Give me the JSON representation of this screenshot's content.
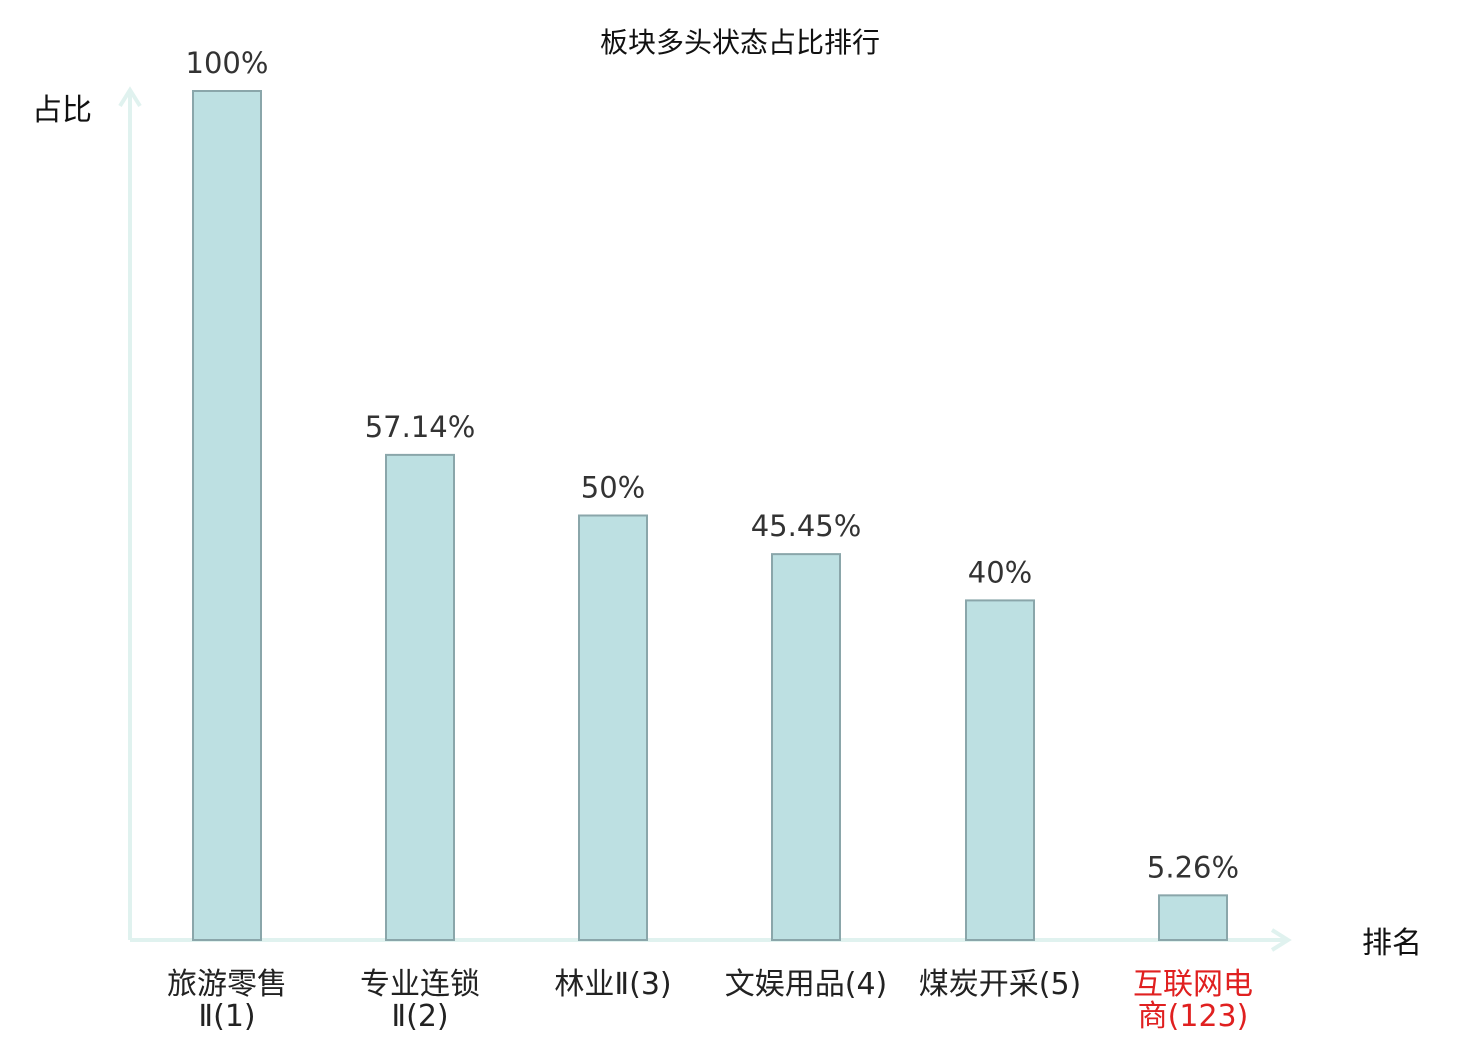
{
  "chart_data": {
    "type": "bar",
    "title": "板块多头状态占比排行",
    "ylabel": "占比",
    "xlabel": "排名",
    "categories": [
      {
        "line1": "旅游零售",
        "line2": "Ⅱ(1)",
        "highlight": false
      },
      {
        "line1": "专业连锁",
        "line2": "Ⅱ(2)",
        "highlight": false
      },
      {
        "line1": "林业Ⅱ(3)",
        "line2": "",
        "highlight": false
      },
      {
        "line1": "文娱用品(4)",
        "line2": "",
        "highlight": false
      },
      {
        "line1": "煤炭开采(5)",
        "line2": "",
        "highlight": false
      },
      {
        "line1": "互联网电",
        "line2": "商(123)",
        "highlight": true
      }
    ],
    "values": [
      100,
      57.14,
      50,
      45.45,
      40,
      5.26
    ],
    "value_labels": [
      "100%",
      "57.14%",
      "50%",
      "45.45%",
      "40%",
      "5.26%"
    ],
    "ylim": [
      0,
      100
    ],
    "grid": false,
    "colors": {
      "bar_fill": "#bde0e2",
      "bar_stroke": "#8aa6aa",
      "axis": "#e0f2ef",
      "text": "#222222",
      "value_text": "#333333",
      "highlight": "#e02020"
    }
  }
}
